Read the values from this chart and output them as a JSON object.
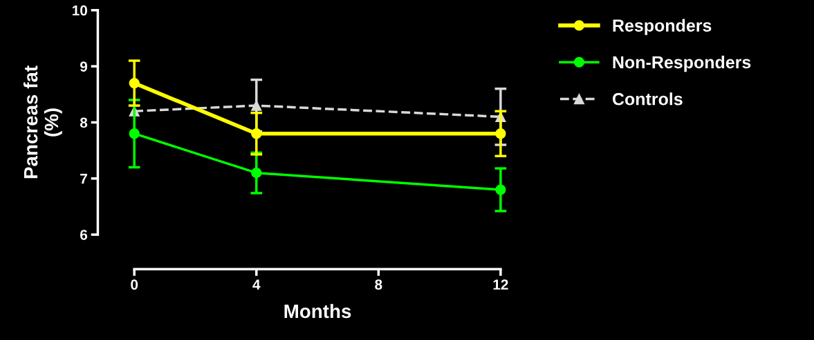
{
  "chart_data": {
    "type": "line",
    "xlabel": "Months",
    "ylabel": "Pancreas fat\n(%)",
    "x": [
      0,
      4,
      12
    ],
    "xlim": [
      0,
      12
    ],
    "xticks": [
      0,
      4,
      8,
      12
    ],
    "ylim": [
      6,
      10
    ],
    "yticks": [
      6,
      7,
      8,
      9,
      10
    ],
    "grid": false,
    "legend": "top right",
    "series": [
      {
        "name": "Controls",
        "color": "#d9d9d9",
        "values": [
          8.2,
          8.3,
          8.1
        ],
        "errors": [
          null,
          0.46,
          0.5
        ],
        "marker": "triangle",
        "line_style": "dashed"
      },
      {
        "name": "Non-Responders",
        "color": "#00ff00",
        "values": [
          7.8,
          7.1,
          6.8
        ],
        "errors": [
          0.6,
          0.36,
          0.38
        ],
        "marker": "circle",
        "line_style": "solid"
      },
      {
        "name": "Responders",
        "color": "#ffff00",
        "values": [
          8.7,
          7.8,
          7.8
        ],
        "errors": [
          0.4,
          0.37,
          0.4
        ],
        "marker": "circle",
        "line_style": "solid"
      }
    ]
  }
}
